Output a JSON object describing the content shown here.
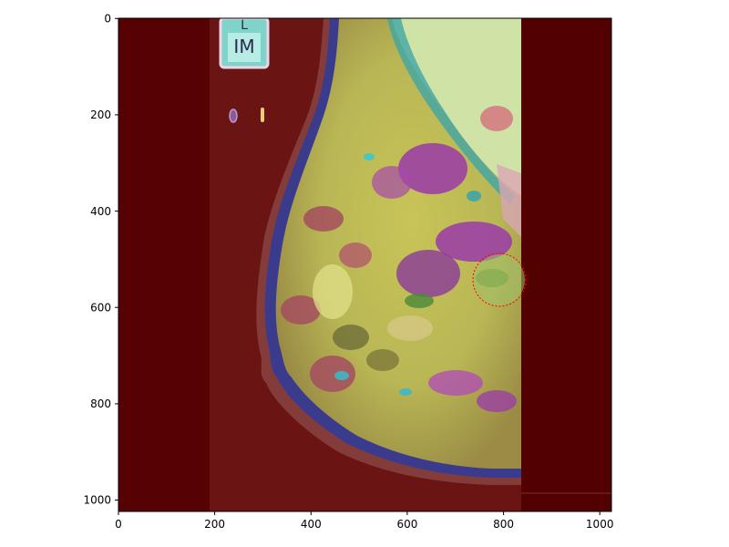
{
  "plot": {
    "x_ticks": [
      "0",
      "200",
      "400",
      "600",
      "800",
      "1000"
    ],
    "y_ticks": [
      "0",
      "200",
      "400",
      "600",
      "800",
      "1000"
    ],
    "x_range": [
      0,
      1024
    ],
    "y_range": [
      1024,
      0
    ],
    "y_inverted": true
  },
  "image": {
    "type": "mammogram-segmentation-overlay",
    "background_overlay_color": "#5a0000",
    "marker_label": "IM",
    "marker_extra": "L",
    "roi_circle": {
      "center": [
        790,
        540
      ],
      "radius": 55,
      "color": "#ff0000",
      "style": "dotted"
    },
    "segment_colors": [
      "#3a3a8a",
      "#b7b94f",
      "#a54d5e",
      "#9b3aa8",
      "#3fa6a6",
      "#d9d9a0",
      "#d46a7a",
      "#6a9a3a",
      "#cfe6b0"
    ]
  }
}
